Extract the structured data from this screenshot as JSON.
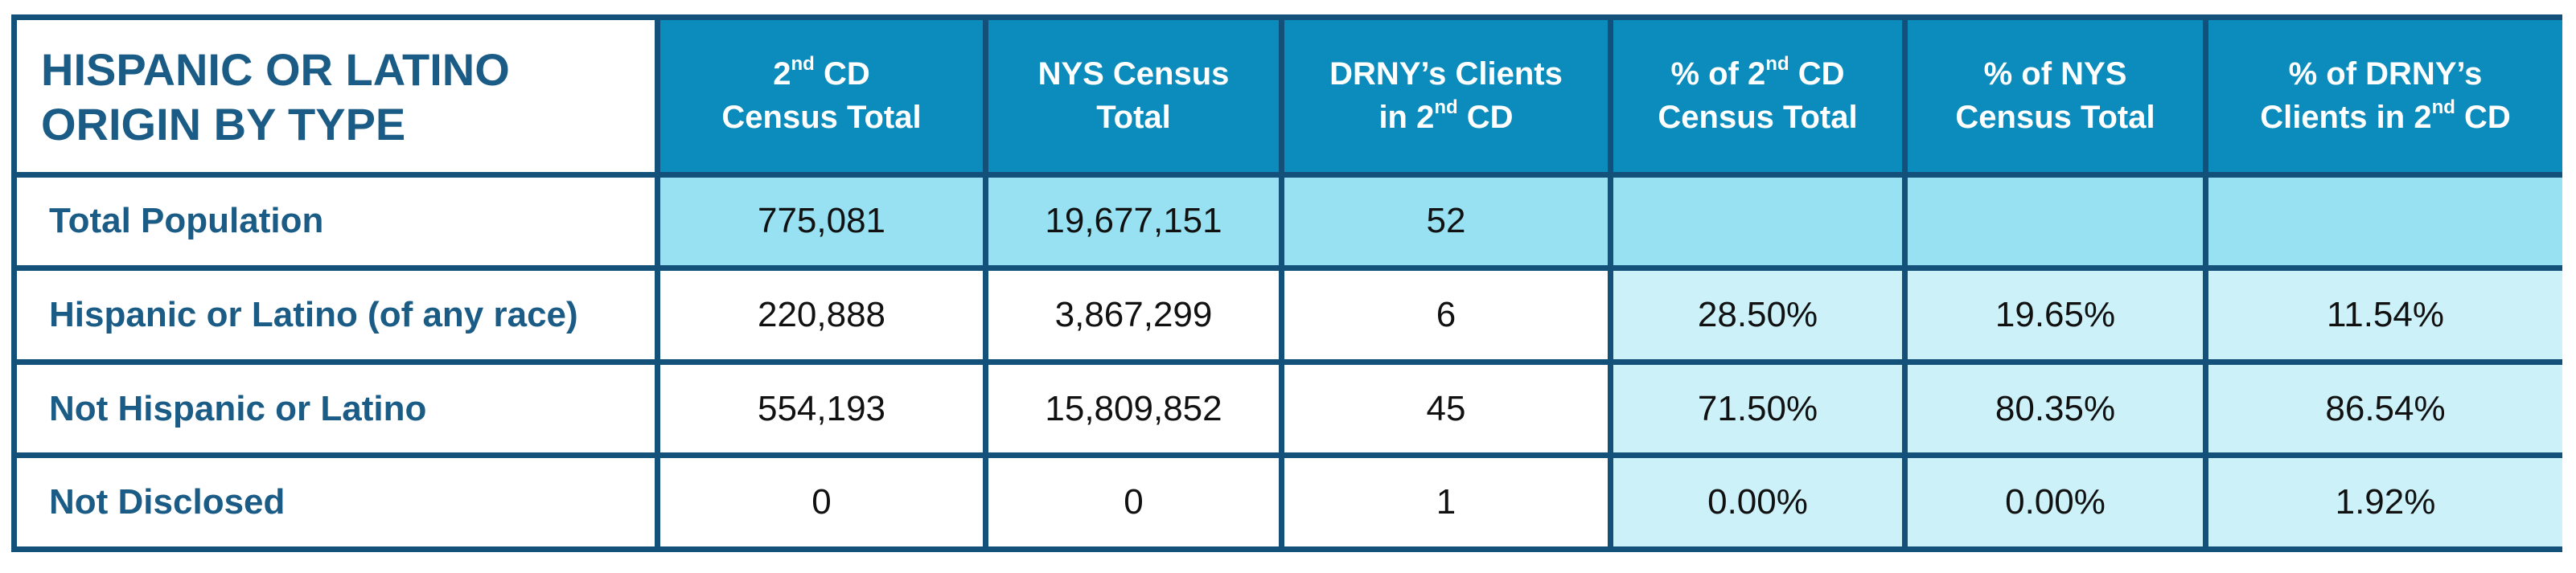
{
  "table": {
    "title_line1": "HISPANIC OR LATINO",
    "title_line2": "ORIGIN BY TYPE",
    "headers": [
      {
        "l1_pre": "2",
        "l1_sup": "nd",
        "l1_post": " CD",
        "l2_pre": "Census Total",
        "l2_sup": "",
        "l2_post": ""
      },
      {
        "l1_pre": "NYS Census",
        "l1_sup": "",
        "l1_post": "",
        "l2_pre": "Total",
        "l2_sup": "",
        "l2_post": ""
      },
      {
        "l1_pre": "DRNY’s Clients",
        "l1_sup": "",
        "l1_post": "",
        "l2_pre": "in 2",
        "l2_sup": "nd",
        "l2_post": " CD"
      },
      {
        "l1_pre": "% of 2",
        "l1_sup": "nd",
        "l1_post": " CD",
        "l2_pre": "Census Total",
        "l2_sup": "",
        "l2_post": ""
      },
      {
        "l1_pre": "% of NYS",
        "l1_sup": "",
        "l1_post": "",
        "l2_pre": "Census Total",
        "l2_sup": "",
        "l2_post": ""
      },
      {
        "l1_pre": "% of DRNY’s",
        "l1_sup": "",
        "l1_post": "",
        "l2_pre": "Clients in 2",
        "l2_sup": "nd",
        "l2_post": " CD"
      }
    ],
    "rows": [
      {
        "label": "Total Population",
        "cells": [
          "775,081",
          "19,677,151",
          "52",
          "",
          "",
          ""
        ]
      },
      {
        "label": "Hispanic or Latino (of any race)",
        "cells": [
          "220,888",
          "3,867,299",
          "6",
          "28.50%",
          "19.65%",
          "11.54%"
        ]
      },
      {
        "label": "Not Hispanic or Latino",
        "cells": [
          "554,193",
          "15,809,852",
          "45",
          "71.50%",
          "80.35%",
          "86.54%"
        ]
      },
      {
        "label": "Not Disclosed",
        "cells": [
          "0",
          "0",
          "1",
          "0.00%",
          "0.00%",
          "1.92%"
        ]
      }
    ]
  },
  "colors": {
    "border": "#13517a",
    "header_bg": "#0b8cbc",
    "title_text": "#1b5c86",
    "total_row_bg": "#97e1f3",
    "percent_bg": "#ccf1f8"
  }
}
